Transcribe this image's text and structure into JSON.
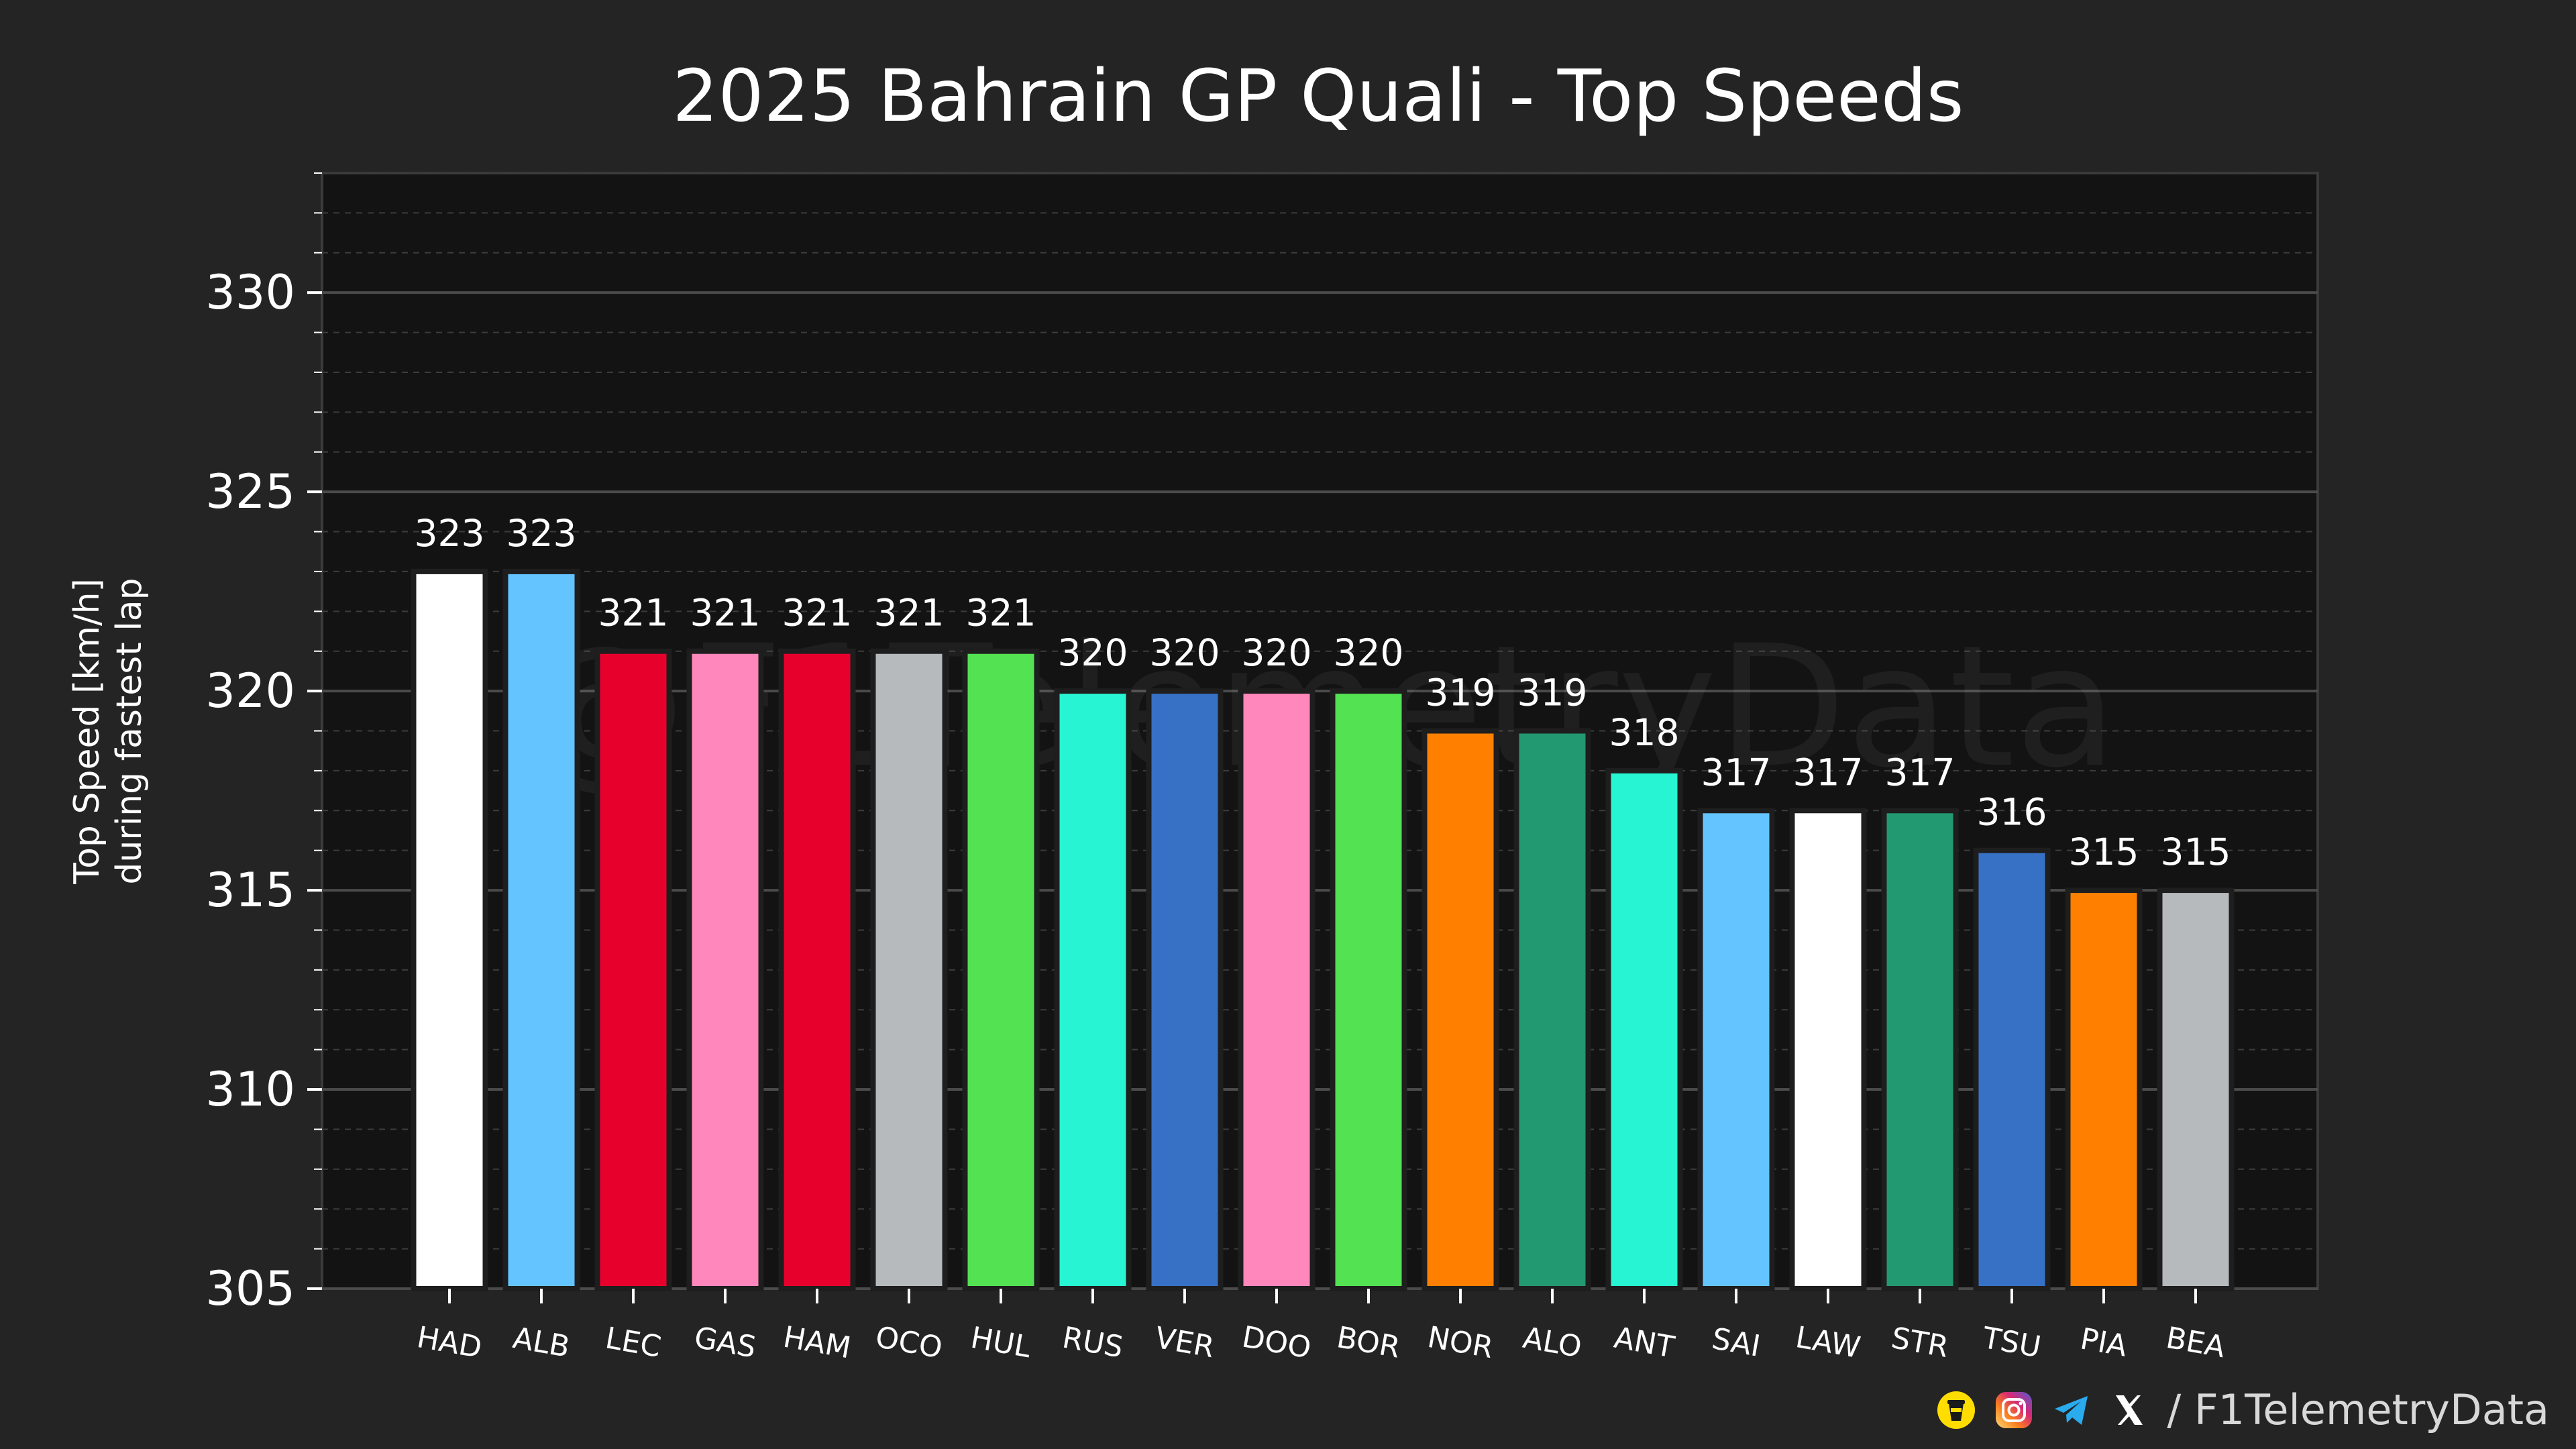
{
  "chart_data": {
    "type": "bar",
    "title": "2025 Bahrain GP Quali - Top Speeds",
    "xlabel": "",
    "ylabel": [
      "Top Speed [km/h]",
      "during fastest lap"
    ],
    "ylim": [
      305,
      333
    ],
    "yticks": [
      305,
      310,
      315,
      320,
      325,
      330
    ],
    "grid": true,
    "watermark": "@F1TelemetryData",
    "categories": [
      "HAD",
      "ALB",
      "LEC",
      "GAS",
      "HAM",
      "OCO",
      "HUL",
      "RUS",
      "VER",
      "DOO",
      "BOR",
      "NOR",
      "ALO",
      "ANT",
      "SAI",
      "LAW",
      "STR",
      "TSU",
      "PIA",
      "BEA"
    ],
    "values": [
      323,
      323,
      321,
      321,
      321,
      321,
      321,
      320,
      320,
      320,
      320,
      319,
      319,
      318,
      317,
      317,
      317,
      316,
      315,
      315
    ],
    "colors": [
      "#FFFFFF",
      "#64C4FF",
      "#E8002D",
      "#FF87BC",
      "#E8002D",
      "#B6BABD",
      "#52E252",
      "#27F4D2",
      "#3671C6",
      "#FF87BC",
      "#52E252",
      "#FF8000",
      "#229971",
      "#27F4D2",
      "#64C4FF",
      "#FFFFFF",
      "#229971",
      "#3671C6",
      "#FF8000",
      "#B6BABD"
    ]
  },
  "footer": {
    "handle": "/ F1TelemetryData",
    "icons": [
      "buymeacoffee-icon",
      "instagram-icon",
      "telegram-icon",
      "x-icon"
    ]
  }
}
